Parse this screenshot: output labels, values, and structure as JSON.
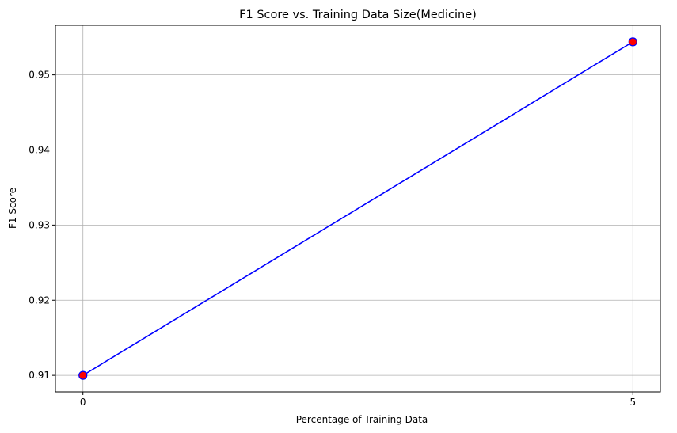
{
  "chart_data": {
    "type": "line",
    "title": "F1 Score vs. Training Data Size(Medicine)",
    "xlabel": "Percentage of Training Data",
    "ylabel": "F1 Score",
    "x": [
      0,
      5
    ],
    "series": [
      {
        "values": [
          0.91,
          0.9544
        ]
      }
    ],
    "xticks": [
      0,
      5
    ],
    "xtick_labels": [
      "0",
      "5"
    ],
    "yticks": [
      0.91,
      0.92,
      0.93,
      0.94,
      0.95
    ],
    "ytick_labels": [
      "0.91",
      "0.92",
      "0.93",
      "0.94",
      "0.95"
    ],
    "xlim": [
      -0.25,
      5.25
    ],
    "ylim": [
      0.9078,
      0.9566
    ],
    "grid": true,
    "colors": {
      "line": "#0000ff",
      "marker_face": "#ff0000",
      "marker_edge": "#0000ff",
      "grid": "#b0b0b0"
    }
  }
}
